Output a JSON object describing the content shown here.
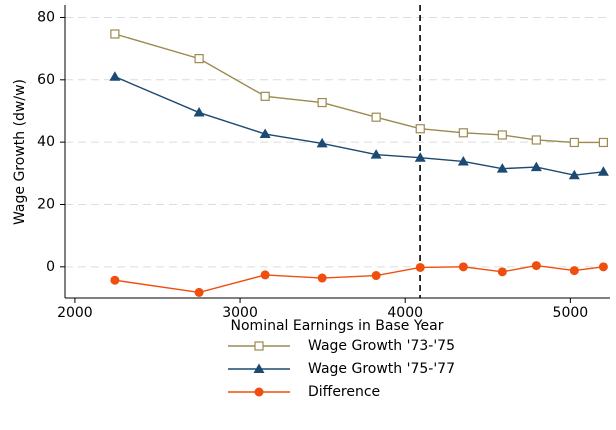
{
  "chart_data": {
    "type": "line",
    "x_label": "Nominal Earnings in Base Year",
    "y_label": "Wage Growth (dw/w)",
    "x": [
      2242,
      2752,
      3152,
      3497,
      3824,
      4091,
      4352,
      4588,
      4794,
      5024,
      5200
    ],
    "series": [
      {
        "name": "Wage Growth '73-'75",
        "color": "#9c8a4e",
        "marker": "square-hollow",
        "values": [
          74.7,
          66.8,
          54.7,
          52.7,
          48,
          44.3,
          43,
          42.3,
          40.7,
          39.9,
          39.9
        ]
      },
      {
        "name": "Wage Growth '75-'77",
        "color": "#1c4a72",
        "marker": "triangle",
        "values": [
          61,
          49.5,
          42.6,
          39.6,
          36,
          35,
          33.8,
          31.5,
          32,
          29.4,
          30.5
        ]
      },
      {
        "name": "Difference",
        "color": "#f04e0e",
        "marker": "circle",
        "values": [
          -4.3,
          -8.2,
          -2.6,
          -3.6,
          -2.8,
          -0.2,
          0,
          -1.6,
          0.4,
          -1.2,
          0
        ]
      }
    ],
    "xlim": [
      1940,
      5240
    ],
    "xticks": [
      2000,
      3000,
      4000,
      5000
    ],
    "ylim": [
      -10,
      84
    ],
    "yticks": [
      0,
      20,
      40,
      60,
      80
    ],
    "grid": true,
    "vline": 4090,
    "legend": "bottom"
  }
}
